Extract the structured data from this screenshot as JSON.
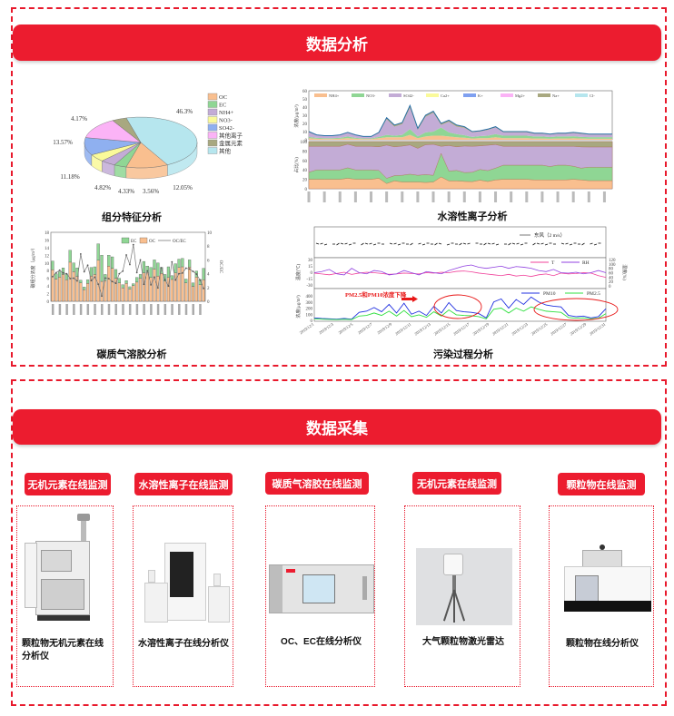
{
  "analysis": {
    "banner": "数据分析",
    "charts": {
      "composition": {
        "title": "组分特征分析"
      },
      "ions": {
        "title": "水溶性离子分析"
      },
      "carbon": {
        "title": "碳质气溶胶分析"
      },
      "pollution": {
        "title": "污染过程分析"
      }
    }
  },
  "collection": {
    "banner": "数据采集",
    "items": [
      {
        "tag": "无机元素在线监测",
        "name": "颗粒物无机元素在线分析仪"
      },
      {
        "tag": "水溶性离子在线监测",
        "name": "水溶性离子在线分析仪"
      },
      {
        "tag": "碳质气溶胶在线监测",
        "name": "OC、EC在线分析仪"
      },
      {
        "tag": "无机元素在线监测",
        "name": "大气颗粒物激光雷达"
      },
      {
        "tag": "颗粒物在线监测",
        "name": "颗粒物在线分析仪"
      }
    ]
  },
  "colors": {
    "accent": "#ec1c2f"
  },
  "chart_data": [
    {
      "type": "pie",
      "labels": [
        "其他",
        "OC",
        "EC",
        "NH4+",
        "NO3-",
        "SO42-",
        "其他离子",
        "金属元素"
      ],
      "legend_order": [
        "OC",
        "EC",
        "NH4+",
        "NO3-",
        "SO42-",
        "其他离子",
        "金属元素",
        "其他"
      ],
      "values": [
        46.3,
        12.05,
        3.56,
        4.33,
        4.82,
        11.18,
        13.57,
        4.17
      ],
      "value_labels": [
        "46.3%",
        "12.05%",
        "3.56%",
        "4.33%",
        "4.82%",
        "11.18%",
        "13.57%",
        "4.17%"
      ],
      "colors": [
        "#b6e6ee",
        "#f9bf8f",
        "#8fd694",
        "#c3acd6",
        "#fafa9a",
        "#8fb0f0",
        "#fbb3f6",
        "#a8a880"
      ],
      "style": "3d",
      "legend": "right"
    },
    {
      "type": "area",
      "legend": [
        "NH4+",
        "NO3-",
        "SO42-",
        "Ca2+",
        "K+",
        "Mg2+",
        "Na+",
        "Cl-"
      ],
      "legend_colors": [
        "#f9bf8f",
        "#8fd694",
        "#c3acd6",
        "#fafa9a",
        "#7fa0f0",
        "#fbb3f6",
        "#a8a880",
        "#b6e6ee"
      ],
      "top_panel": {
        "ylabel": "浓度(μg/m³)",
        "yticks": [
          "0",
          "10",
          "20",
          "30",
          "40",
          "50",
          "60"
        ],
        "ylim": [
          0,
          60
        ]
      },
      "bottom_panel": {
        "ylabel": "占比(%)",
        "yticks": [
          "0",
          "20",
          "40",
          "60",
          "80",
          "100"
        ],
        "ylim": [
          0,
          100
        ]
      },
      "series": [
        {
          "name": "NH4+",
          "values": [
            2,
            1.2,
            1,
            1,
            1.2,
            2,
            1.2,
            0.8,
            0.8,
            2,
            3,
            3,
            3,
            6,
            2,
            4,
            5,
            5,
            4,
            3,
            2.5,
            1.5,
            2,
            2,
            3,
            2,
            2,
            2,
            2,
            1.5,
            1.5,
            1.3,
            1.5,
            1.5,
            1.8,
            1.5,
            1.2,
            1.2,
            1.2,
            1.2
          ]
        },
        {
          "name": "NO3-",
          "values": [
            1.5,
            1.2,
            1,
            1,
            1.2,
            2,
            1.2,
            0.8,
            0.8,
            1.5,
            3,
            2,
            3,
            7,
            2,
            5,
            5,
            10,
            5,
            4,
            3,
            2,
            2.5,
            3,
            4,
            3,
            3,
            3,
            3,
            2.5,
            2.5,
            2,
            2.5,
            2.5,
            2.5,
            2,
            2,
            2,
            2,
            2
          ]
        },
        {
          "name": "SO42-",
          "values": [
            5.5,
            3,
            2.5,
            2.5,
            3,
            4.5,
            3,
            2,
            2,
            4.5,
            19,
            11,
            13,
            26,
            8,
            19,
            23,
            3,
            13,
            9,
            9,
            5.5,
            5.5,
            7,
            8,
            4,
            4,
            4,
            4,
            3.2,
            3.2,
            3,
            3.2,
            3.2,
            3.8,
            3.6,
            3,
            3,
            3,
            3
          ]
        },
        {
          "name": "Na+",
          "values": [
            1,
            0.6,
            0.5,
            0.5,
            0.6,
            0.5,
            0.6,
            0.4,
            0.4,
            1,
            2,
            2,
            2,
            3,
            2,
            2,
            2,
            2,
            2,
            2,
            1.5,
            1,
            1,
            1,
            1,
            1,
            1,
            1,
            1,
            0.8,
            0.8,
            0.7,
            0.8,
            0.8,
            0.9,
            0.9,
            0.8,
            0.8,
            0.8,
            0.8
          ]
        }
      ]
    },
    {
      "type": "bar",
      "stacked": true,
      "legend": [
        "EC",
        "OC",
        "OC/EC"
      ],
      "ylabel": "碳组分浓度（μg/m³）",
      "y2label": "OC/EC",
      "ylim": [
        0,
        18
      ],
      "y2lim": [
        0,
        10
      ],
      "yticks": [
        "0",
        "2",
        "4",
        "6",
        "8",
        "10",
        "12",
        "14",
        "16",
        "18"
      ],
      "y2ticks": [
        "0",
        "2",
        "4",
        "6",
        "8",
        "10"
      ],
      "series": [
        {
          "name": "OC",
          "color": "#f9bf8f",
          "values": [
            8.2,
            5.8,
            6.3,
            7,
            5.6,
            10.2,
            7.7,
            6.5,
            4.8,
            3,
            4.7,
            6.6,
            7,
            10.7,
            5.2,
            5.4,
            9.2,
            8.6,
            6,
            4.8,
            3.5,
            4.7,
            3.2,
            4.1,
            5,
            6,
            7.4,
            7.5,
            6.2,
            8.4,
            6.6,
            7.3,
            5.3,
            6.2,
            5.7,
            7.4,
            8.8,
            9,
            4.8,
            8.9,
            3.9,
            6.3,
            4.3,
            5.6
          ]
        },
        {
          "name": "EC",
          "color": "#8fd694",
          "values": [
            2.3,
            1.4,
            1.4,
            1.7,
            1.4,
            3.1,
            2.3,
            2.2,
            0.7,
            0.7,
            0.9,
            2.2,
            2,
            4.3,
            6.8,
            1.6,
            2.8,
            3,
            2.3,
            1.2,
            0.8,
            0.7,
            0.6,
            0.5,
            1.2,
            1,
            3,
            1.7,
            2.6,
            2.4,
            3.4,
            1.5,
            1.7,
            2.8,
            1,
            2.4,
            2.2,
            2.2,
            1,
            1.9,
            0.9,
            1.6,
            1.4,
            3
          ]
        }
      ]
    },
    {
      "type": "line",
      "x_ticks": [
        "2019/12/1",
        "2019/12/3",
        "2019/12/5",
        "2019/12/7",
        "2019/12/9",
        "2019/12/11",
        "2019/12/13",
        "2019/12/15",
        "2019/12/17",
        "2019/12/19",
        "2019/12/21",
        "2019/12/23",
        "2019/12/25",
        "2019/12/27",
        "2019/12/29",
        "2019/12/31"
      ],
      "wind_legend": "东风（2 m/s）",
      "annotation": "PM2.5和PM10浓度下降",
      "temp_panel": {
        "ylabel": "温度(℃)",
        "y2label": "湿度(%)",
        "yticks": [
          "30",
          "15",
          "0",
          "-15",
          "-30"
        ],
        "y2ticks": [
          "120",
          "100",
          "80",
          "60",
          "40",
          "20",
          "0"
        ],
        "ylim": [
          -30,
          30
        ],
        "y2lim": [
          0,
          120
        ]
      },
      "pm_panel": {
        "ylabel": "浓度(μg/m³)",
        "yticks": [
          "400",
          "300",
          "200",
          "100",
          "0"
        ],
        "ylim": [
          0,
          400
        ]
      },
      "series": [
        {
          "name": "T",
          "color": "#f0409a",
          "values": [
            -2,
            -4,
            -6,
            -3,
            0,
            -5,
            -2,
            0,
            -1,
            -3,
            -5,
            -4,
            -2,
            -3,
            -4,
            -1,
            -2,
            0,
            -1,
            2,
            3,
            1,
            -2,
            -4,
            -6,
            -8,
            -5,
            -9,
            -7,
            -10,
            -6,
            -4,
            -8,
            -2,
            -4,
            -3,
            -1,
            -2,
            -8,
            -12
          ]
        },
        {
          "name": "RH",
          "color": "#9040e0",
          "values": [
            60,
            65,
            75,
            55,
            50,
            80,
            60,
            55,
            70,
            65,
            50,
            55,
            70,
            60,
            50,
            65,
            60,
            55,
            70,
            80,
            90,
            95,
            85,
            80,
            85,
            90,
            80,
            88,
            85,
            80,
            70,
            65,
            75,
            60,
            58,
            62,
            55,
            60,
            70,
            60
          ]
        },
        {
          "name": "PM10",
          "color": "#2030e0",
          "values": [
            40,
            30,
            25,
            20,
            30,
            20,
            130,
            150,
            210,
            140,
            260,
            120,
            280,
            100,
            150,
            80,
            230,
            120,
            290,
            160,
            140,
            130,
            110,
            40,
            300,
            350,
            200,
            340,
            260,
            380,
            300,
            250,
            230,
            220,
            80,
            60,
            70,
            40,
            60,
            190
          ]
        },
        {
          "name": "PM2.5",
          "color": "#30e040",
          "values": [
            25,
            20,
            15,
            12,
            18,
            12,
            70,
            80,
            120,
            80,
            150,
            70,
            160,
            60,
            90,
            50,
            140,
            70,
            170,
            90,
            80,
            75,
            60,
            25,
            180,
            200,
            120,
            200,
            150,
            220,
            180,
            150,
            140,
            130,
            45,
            35,
            40,
            25,
            35,
            110
          ]
        }
      ]
    }
  ]
}
